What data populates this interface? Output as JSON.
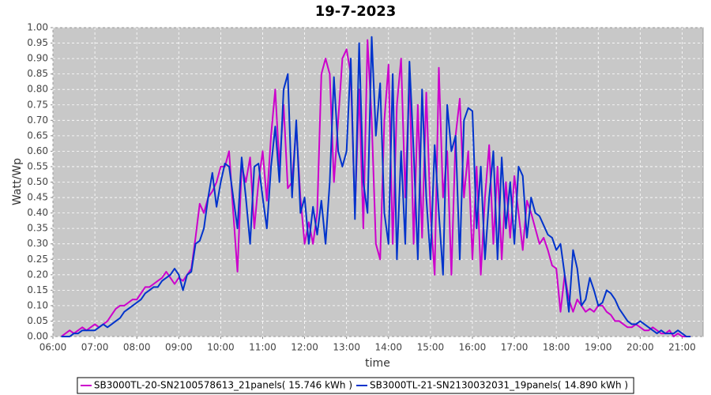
{
  "chart_data": {
    "type": "line",
    "title": "19-7-2023",
    "x_label": "time",
    "y_label": "Watt/Wp",
    "x": [
      6.2,
      6.3,
      6.4,
      6.5,
      6.6,
      6.7,
      6.8,
      6.9,
      7.0,
      7.1,
      7.2,
      7.3,
      7.4,
      7.5,
      7.6,
      7.7,
      7.8,
      7.9,
      8.0,
      8.1,
      8.2,
      8.3,
      8.4,
      8.5,
      8.6,
      8.7,
      8.8,
      8.9,
      9.0,
      9.1,
      9.2,
      9.3,
      9.4,
      9.5,
      9.6,
      9.7,
      9.8,
      9.9,
      10.0,
      10.1,
      10.2,
      10.3,
      10.4,
      10.5,
      10.6,
      10.7,
      10.8,
      10.9,
      11.0,
      11.1,
      11.2,
      11.3,
      11.4,
      11.5,
      11.6,
      11.7,
      11.8,
      11.9,
      12.0,
      12.1,
      12.2,
      12.3,
      12.4,
      12.5,
      12.6,
      12.7,
      12.8,
      12.9,
      13.0,
      13.1,
      13.2,
      13.3,
      13.4,
      13.5,
      13.6,
      13.7,
      13.8,
      13.9,
      14.0,
      14.1,
      14.2,
      14.3,
      14.4,
      14.5,
      14.6,
      14.7,
      14.8,
      14.9,
      15.0,
      15.1,
      15.2,
      15.3,
      15.4,
      15.5,
      15.6,
      15.7,
      15.8,
      15.9,
      16.0,
      16.1,
      16.2,
      16.3,
      16.4,
      16.5,
      16.6,
      16.7,
      16.8,
      16.9,
      17.0,
      17.1,
      17.2,
      17.3,
      17.4,
      17.5,
      17.6,
      17.7,
      17.8,
      17.9,
      18.0,
      18.1,
      18.2,
      18.3,
      18.4,
      18.5,
      18.6,
      18.7,
      18.8,
      18.9,
      19.0,
      19.1,
      19.2,
      19.3,
      19.4,
      19.5,
      19.6,
      19.7,
      19.8,
      19.9,
      20.0,
      20.1,
      20.2,
      20.3,
      20.4,
      20.5,
      20.6,
      20.7,
      20.8,
      20.9,
      21.0,
      21.1,
      21.2
    ],
    "series": [
      {
        "name": "SB3000TL-20-SN2100578613_21panels( 15.746 kWh )",
        "color": "#cc00cc",
        "values": [
          0,
          0.01,
          0.02,
          0.01,
          0.02,
          0.03,
          0.02,
          0.03,
          0.04,
          0.03,
          0.04,
          0.05,
          0.07,
          0.09,
          0.1,
          0.1,
          0.11,
          0.12,
          0.12,
          0.14,
          0.16,
          0.16,
          0.17,
          0.18,
          0.19,
          0.21,
          0.19,
          0.17,
          0.19,
          0.18,
          0.2,
          0.22,
          0.32,
          0.43,
          0.4,
          0.45,
          0.47,
          0.5,
          0.55,
          0.55,
          0.6,
          0.4,
          0.21,
          0.55,
          0.5,
          0.58,
          0.35,
          0.5,
          0.6,
          0.44,
          0.65,
          0.8,
          0.55,
          0.75,
          0.48,
          0.5,
          0.68,
          0.45,
          0.3,
          0.37,
          0.3,
          0.4,
          0.85,
          0.9,
          0.85,
          0.5,
          0.7,
          0.9,
          0.93,
          0.85,
          0.4,
          0.8,
          0.35,
          0.96,
          0.7,
          0.3,
          0.25,
          0.7,
          0.88,
          0.3,
          0.75,
          0.9,
          0.45,
          0.85,
          0.3,
          0.75,
          0.32,
          0.79,
          0.4,
          0.2,
          0.87,
          0.45,
          0.6,
          0.2,
          0.65,
          0.77,
          0.45,
          0.6,
          0.25,
          0.55,
          0.2,
          0.45,
          0.62,
          0.3,
          0.55,
          0.25,
          0.5,
          0.32,
          0.52,
          0.4,
          0.28,
          0.44,
          0.4,
          0.35,
          0.3,
          0.32,
          0.28,
          0.23,
          0.22,
          0.08,
          0.2,
          0.12,
          0.08,
          0.12,
          0.1,
          0.08,
          0.09,
          0.08,
          0.1,
          0.1,
          0.08,
          0.07,
          0.05,
          0.05,
          0.04,
          0.03,
          0.03,
          0.04,
          0.03,
          0.02,
          0.02,
          0.03,
          0.02,
          0.01,
          0.01,
          0.02,
          0,
          0.01,
          0,
          0,
          0
        ]
      },
      {
        "name": "SB3000TL-21-SN2130032031_19panels( 14.890 kWh )",
        "color": "#0033cc",
        "values": [
          0,
          0,
          0,
          0.01,
          0.01,
          0.02,
          0.02,
          0.02,
          0.02,
          0.03,
          0.04,
          0.03,
          0.04,
          0.05,
          0.06,
          0.08,
          0.09,
          0.1,
          0.11,
          0.12,
          0.14,
          0.15,
          0.16,
          0.16,
          0.18,
          0.19,
          0.2,
          0.22,
          0.2,
          0.15,
          0.2,
          0.21,
          0.3,
          0.31,
          0.35,
          0.45,
          0.53,
          0.42,
          0.5,
          0.56,
          0.55,
          0.45,
          0.35,
          0.58,
          0.45,
          0.3,
          0.55,
          0.56,
          0.45,
          0.35,
          0.55,
          0.68,
          0.5,
          0.8,
          0.85,
          0.45,
          0.7,
          0.4,
          0.45,
          0.3,
          0.42,
          0.33,
          0.44,
          0.3,
          0.5,
          0.84,
          0.6,
          0.55,
          0.6,
          0.9,
          0.38,
          0.95,
          0.5,
          0.4,
          0.97,
          0.65,
          0.82,
          0.4,
          0.3,
          0.85,
          0.25,
          0.6,
          0.3,
          0.89,
          0.6,
          0.25,
          0.8,
          0.45,
          0.25,
          0.62,
          0.4,
          0.2,
          0.75,
          0.6,
          0.65,
          0.25,
          0.7,
          0.74,
          0.73,
          0.35,
          0.55,
          0.25,
          0.45,
          0.6,
          0.25,
          0.58,
          0.35,
          0.5,
          0.3,
          0.55,
          0.52,
          0.32,
          0.45,
          0.4,
          0.39,
          0.36,
          0.33,
          0.32,
          0.28,
          0.3,
          0.2,
          0.08,
          0.28,
          0.22,
          0.1,
          0.12,
          0.19,
          0.15,
          0.1,
          0.11,
          0.15,
          0.14,
          0.12,
          0.09,
          0.07,
          0.05,
          0.04,
          0.04,
          0.05,
          0.04,
          0.03,
          0.02,
          0.01,
          0.02,
          0.01,
          0.01,
          0.01,
          0.02,
          0.01,
          0,
          0
        ]
      }
    ],
    "xlim": [
      6,
      21.5
    ],
    "xticks": [
      {
        "value": 6,
        "label": "06:00"
      },
      {
        "value": 7,
        "label": "07:00"
      },
      {
        "value": 8,
        "label": "08:00"
      },
      {
        "value": 9,
        "label": "09:00"
      },
      {
        "value": 10,
        "label": "10:00"
      },
      {
        "value": 11,
        "label": "11:00"
      },
      {
        "value": 12,
        "label": "12:00"
      },
      {
        "value": 13,
        "label": "13:00"
      },
      {
        "value": 14,
        "label": "14:00"
      },
      {
        "value": 15,
        "label": "15:00"
      },
      {
        "value": 16,
        "label": "16:00"
      },
      {
        "value": 17,
        "label": "17:00"
      },
      {
        "value": 18,
        "label": "18:00"
      },
      {
        "value": 19,
        "label": "19:00"
      },
      {
        "value": 20,
        "label": "20:00"
      },
      {
        "value": 21,
        "label": "21:00"
      }
    ],
    "ylim": [
      0,
      1
    ],
    "yticks": [
      {
        "value": 0,
        "label": "0.00"
      },
      {
        "value": 0.05,
        "label": "0.05"
      },
      {
        "value": 0.1,
        "label": "0.10"
      },
      {
        "value": 0.15,
        "label": "0.15"
      },
      {
        "value": 0.2,
        "label": "0.20"
      },
      {
        "value": 0.25,
        "label": "0.25"
      },
      {
        "value": 0.3,
        "label": "0.30"
      },
      {
        "value": 0.35,
        "label": "0.35"
      },
      {
        "value": 0.4,
        "label": "0.40"
      },
      {
        "value": 0.45,
        "label": "0.45"
      },
      {
        "value": 0.5,
        "label": "0.50"
      },
      {
        "value": 0.55,
        "label": "0.55"
      },
      {
        "value": 0.6,
        "label": "0.60"
      },
      {
        "value": 0.65,
        "label": "0.65"
      },
      {
        "value": 0.7,
        "label": "0.70"
      },
      {
        "value": 0.75,
        "label": "0.75"
      },
      {
        "value": 0.8,
        "label": "0.80"
      },
      {
        "value": 0.85,
        "label": "0.85"
      },
      {
        "value": 0.9,
        "label": "0.90"
      },
      {
        "value": 0.95,
        "label": "0.95"
      },
      {
        "value": 1,
        "label": "1.00"
      }
    ],
    "grid": true,
    "legend": "bottom"
  }
}
